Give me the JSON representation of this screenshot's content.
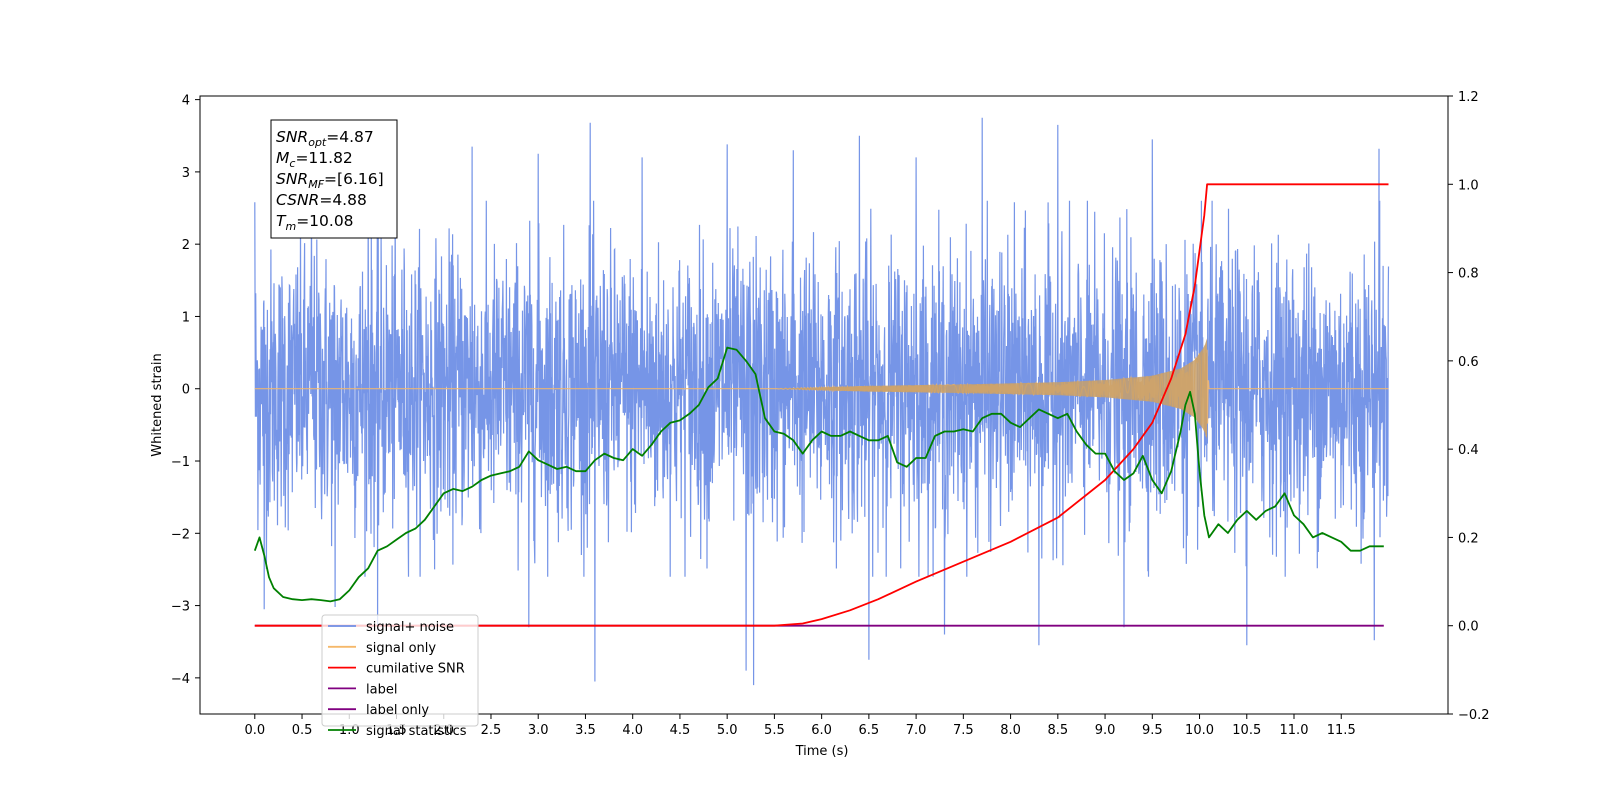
{
  "chart_data": {
    "type": "line",
    "x_axis": {
      "label": "Time (s)",
      "range": [
        -0.58,
        12.63
      ],
      "ticks": [
        0.0,
        0.5,
        1.0,
        1.5,
        2.0,
        2.5,
        3.0,
        3.5,
        4.0,
        4.5,
        5.0,
        5.5,
        6.0,
        6.5,
        7.0,
        7.5,
        8.0,
        8.5,
        9.0,
        9.5,
        10.0,
        10.5,
        11.0,
        11.5
      ],
      "tick_labels": [
        "0.0",
        "0.5",
        "1.0",
        "1.5",
        "2.0",
        "2.5",
        "3.0",
        "3.5",
        "4.0",
        "4.5",
        "5.0",
        "5.5",
        "6.0",
        "6.5",
        "7.0",
        "7.5",
        "8.0",
        "8.5",
        "9.0",
        "9.5",
        "10.0",
        "10.5",
        "11.0",
        "11.5"
      ]
    },
    "y_left": {
      "label": "Whitened strain",
      "range": [
        -4.5,
        4.05
      ],
      "ticks": [
        -4,
        -3,
        -2,
        -1,
        0,
        1,
        2,
        3,
        4
      ],
      "tick_labels": [
        "−4",
        "−3",
        "−2",
        "−1",
        "0",
        "1",
        "2",
        "3",
        "4"
      ]
    },
    "y_right": {
      "label": "",
      "range": [
        -0.2,
        1.2
      ],
      "ticks": [
        -0.2,
        0.0,
        0.2,
        0.4,
        0.6,
        0.8,
        1.0,
        1.2
      ],
      "tick_labels": [
        "−0.2",
        "0.0",
        "0.2",
        "0.4",
        "0.6",
        "0.8",
        "1.0",
        "1.2"
      ]
    },
    "grid": false,
    "legend_position": "lower-left",
    "legend": [
      {
        "name": "signal+ noise",
        "color": "#6f8fe6"
      },
      {
        "name": "signal only",
        "color": "#f5b86a"
      },
      {
        "name": "cumilative SNR",
        "color": "#ff0000"
      },
      {
        "name": "label",
        "color": "#800080"
      },
      {
        "name": "label only",
        "color": "#800080"
      },
      {
        "name": "signal statistics",
        "color": "#008000"
      }
    ],
    "annotation": {
      "lines": [
        {
          "sym": "SNR",
          "sub": "opt",
          "val": "=4.87"
        },
        {
          "sym": "M",
          "sub": "c",
          "val": "=11.82"
        },
        {
          "sym": "SNR",
          "sub": "MF",
          "val": "=[6.16]"
        },
        {
          "sym": "CSNR",
          "sub": "",
          "val": "=4.88"
        },
        {
          "sym": "T",
          "sub": "m",
          "val": "=10.08"
        }
      ]
    },
    "series": [
      {
        "name": "signal+ noise",
        "axis": "left",
        "color": "#6f8fe6",
        "x_start": 0.0,
        "x_end": 12.0,
        "envelope_upper": 1.9,
        "envelope_lower": -1.9,
        "peak_max": [
          [
            0.0,
            2.58
          ],
          [
            0.6,
            2.4
          ],
          [
            1.2,
            2.5
          ],
          [
            2.3,
            3.35
          ],
          [
            3.0,
            3.25
          ],
          [
            3.55,
            3.68
          ],
          [
            4.1,
            3.2
          ],
          [
            5.0,
            3.38
          ],
          [
            5.7,
            3.3
          ],
          [
            6.4,
            3.5
          ],
          [
            7.0,
            3.2
          ],
          [
            7.7,
            3.75
          ],
          [
            8.5,
            3.65
          ],
          [
            9.5,
            3.45
          ],
          [
            10.5,
            3.5
          ],
          [
            11.9,
            3.32
          ]
        ],
        "peak_min": [
          [
            0.1,
            -3.05
          ],
          [
            0.85,
            -3.02
          ],
          [
            1.3,
            -3.3
          ],
          [
            2.9,
            -3.3
          ],
          [
            3.6,
            -4.05
          ],
          [
            5.2,
            -3.9
          ],
          [
            5.28,
            -4.1
          ],
          [
            6.5,
            -3.75
          ],
          [
            7.3,
            -3.4
          ],
          [
            8.3,
            -3.55
          ],
          [
            9.2,
            -3.3
          ],
          [
            10.5,
            -3.55
          ],
          [
            11.85,
            -3.48
          ]
        ]
      },
      {
        "name": "signal only",
        "axis": "left",
        "color": "#f5b86a",
        "x": [
          0.0,
          5.5,
          6.5,
          7.5,
          8.5,
          9.0,
          9.5,
          9.8,
          9.95,
          10.05,
          10.08,
          10.1,
          12.0
        ],
        "amplitude": [
          0.0,
          0.0,
          0.04,
          0.06,
          0.09,
          0.12,
          0.18,
          0.28,
          0.4,
          0.58,
          0.7,
          0.0,
          0.0
        ]
      },
      {
        "name": "cumilative SNR",
        "axis": "right",
        "color": "#ff0000",
        "x": [
          0.0,
          5.5,
          5.8,
          6.0,
          6.3,
          6.6,
          7.0,
          7.5,
          8.0,
          8.5,
          9.0,
          9.3,
          9.5,
          9.7,
          9.85,
          9.95,
          10.05,
          10.08,
          12.0
        ],
        "y": [
          0.0,
          0.0,
          0.005,
          0.015,
          0.035,
          0.06,
          0.1,
          0.145,
          0.19,
          0.245,
          0.33,
          0.4,
          0.46,
          0.56,
          0.66,
          0.77,
          0.93,
          1.0,
          1.0
        ]
      },
      {
        "name": "label",
        "axis": "right",
        "color": "#800080",
        "x": [
          0.0,
          11.95
        ],
        "y": [
          0.0,
          0.0
        ]
      },
      {
        "name": "signal statistics",
        "axis": "right",
        "color": "#008000",
        "x": [
          0.0,
          0.05,
          0.1,
          0.15,
          0.2,
          0.3,
          0.4,
          0.5,
          0.6,
          0.7,
          0.8,
          0.9,
          1.0,
          1.1,
          1.2,
          1.3,
          1.4,
          1.5,
          1.6,
          1.7,
          1.8,
          1.9,
          2.0,
          2.1,
          2.2,
          2.3,
          2.4,
          2.5,
          2.6,
          2.7,
          2.8,
          2.9,
          3.0,
          3.1,
          3.2,
          3.3,
          3.4,
          3.5,
          3.6,
          3.7,
          3.8,
          3.9,
          4.0,
          4.1,
          4.2,
          4.3,
          4.4,
          4.5,
          4.6,
          4.7,
          4.8,
          4.9,
          5.0,
          5.1,
          5.2,
          5.3,
          5.4,
          5.5,
          5.6,
          5.7,
          5.8,
          5.9,
          6.0,
          6.1,
          6.2,
          6.3,
          6.4,
          6.5,
          6.6,
          6.7,
          6.8,
          6.9,
          7.0,
          7.1,
          7.2,
          7.3,
          7.4,
          7.5,
          7.6,
          7.7,
          7.8,
          7.9,
          8.0,
          8.1,
          8.2,
          8.3,
          8.4,
          8.5,
          8.6,
          8.7,
          8.8,
          8.9,
          9.0,
          9.1,
          9.2,
          9.3,
          9.4,
          9.5,
          9.6,
          9.7,
          9.8,
          9.85,
          9.9,
          9.95,
          10.0,
          10.05,
          10.1,
          10.2,
          10.3,
          10.4,
          10.5,
          10.6,
          10.7,
          10.8,
          10.9,
          11.0,
          11.1,
          11.2,
          11.3,
          11.4,
          11.5,
          11.6,
          11.7,
          11.8,
          11.9,
          11.95
        ],
        "y": [
          0.17,
          0.2,
          0.16,
          0.11,
          0.085,
          0.065,
          0.06,
          0.058,
          0.06,
          0.058,
          0.055,
          0.06,
          0.08,
          0.11,
          0.13,
          0.17,
          0.18,
          0.195,
          0.21,
          0.22,
          0.24,
          0.27,
          0.3,
          0.31,
          0.305,
          0.315,
          0.33,
          0.34,
          0.345,
          0.35,
          0.36,
          0.395,
          0.375,
          0.365,
          0.355,
          0.36,
          0.35,
          0.35,
          0.375,
          0.39,
          0.38,
          0.375,
          0.4,
          0.385,
          0.41,
          0.44,
          0.46,
          0.465,
          0.48,
          0.5,
          0.54,
          0.56,
          0.63,
          0.625,
          0.6,
          0.57,
          0.47,
          0.44,
          0.435,
          0.42,
          0.39,
          0.42,
          0.44,
          0.43,
          0.43,
          0.44,
          0.43,
          0.42,
          0.42,
          0.43,
          0.37,
          0.36,
          0.38,
          0.38,
          0.43,
          0.44,
          0.44,
          0.445,
          0.44,
          0.47,
          0.48,
          0.48,
          0.46,
          0.45,
          0.47,
          0.49,
          0.48,
          0.47,
          0.48,
          0.44,
          0.41,
          0.39,
          0.39,
          0.35,
          0.33,
          0.345,
          0.385,
          0.33,
          0.3,
          0.35,
          0.44,
          0.5,
          0.53,
          0.48,
          0.35,
          0.25,
          0.2,
          0.23,
          0.21,
          0.24,
          0.26,
          0.24,
          0.26,
          0.27,
          0.3,
          0.25,
          0.23,
          0.2,
          0.21,
          0.2,
          0.19,
          0.17,
          0.17,
          0.18,
          0.18,
          0.18
        ]
      }
    ]
  }
}
